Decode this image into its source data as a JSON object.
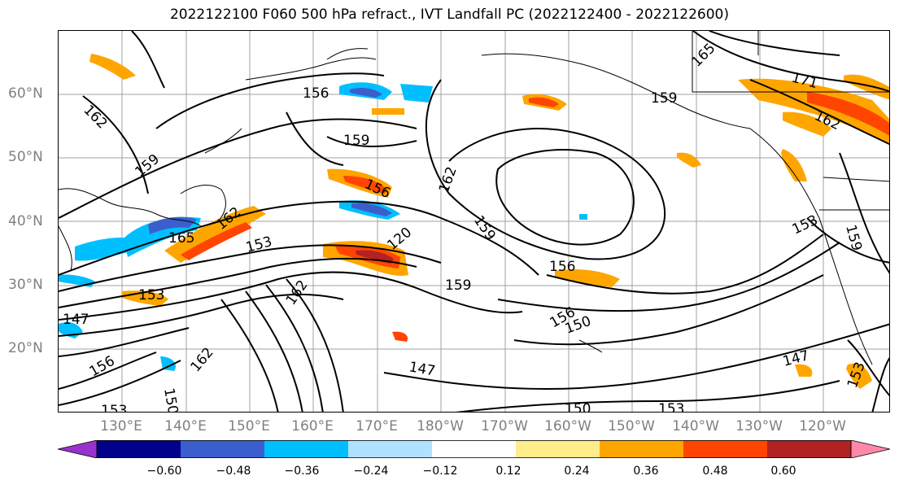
{
  "title": "2022122100 F060 500 hPa refract., IVT Landfall PC (2022122400 - 2022122600)",
  "lat_labels": [
    "60°N",
    "50°N",
    "40°N",
    "30°N",
    "20°N"
  ],
  "lon_labels": [
    "130°E",
    "140°E",
    "150°E",
    "160°E",
    "170°E",
    "180°W",
    "170°W",
    "160°W",
    "150°W",
    "140°W",
    "130°W",
    "120°W"
  ],
  "contour_labels": [
    "162",
    "156",
    "159",
    "159",
    "156",
    "162",
    "159",
    "156",
    "153",
    "153",
    "162",
    "165",
    "162",
    "153",
    "147",
    "156",
    "150",
    "147",
    "150",
    "153",
    "147",
    "153",
    "165",
    "171",
    "162",
    "159",
    "153",
    "159",
    "162",
    "150",
    "156",
    "159",
    "120"
  ],
  "colorbar": {
    "ticks": [
      "−0.60",
      "−0.48",
      "−0.36",
      "−0.24",
      "−0.12",
      "0.12",
      "0.24",
      "0.36",
      "0.48",
      "0.60"
    ],
    "colors": [
      "#9932cc",
      "#00008b",
      "#3a5fcd",
      "#00bfff",
      "#b0e2ff",
      "#ffffff",
      "#ffec8b",
      "#ffa500",
      "#ff4500",
      "#b22222",
      "#ff88aa"
    ]
  }
}
